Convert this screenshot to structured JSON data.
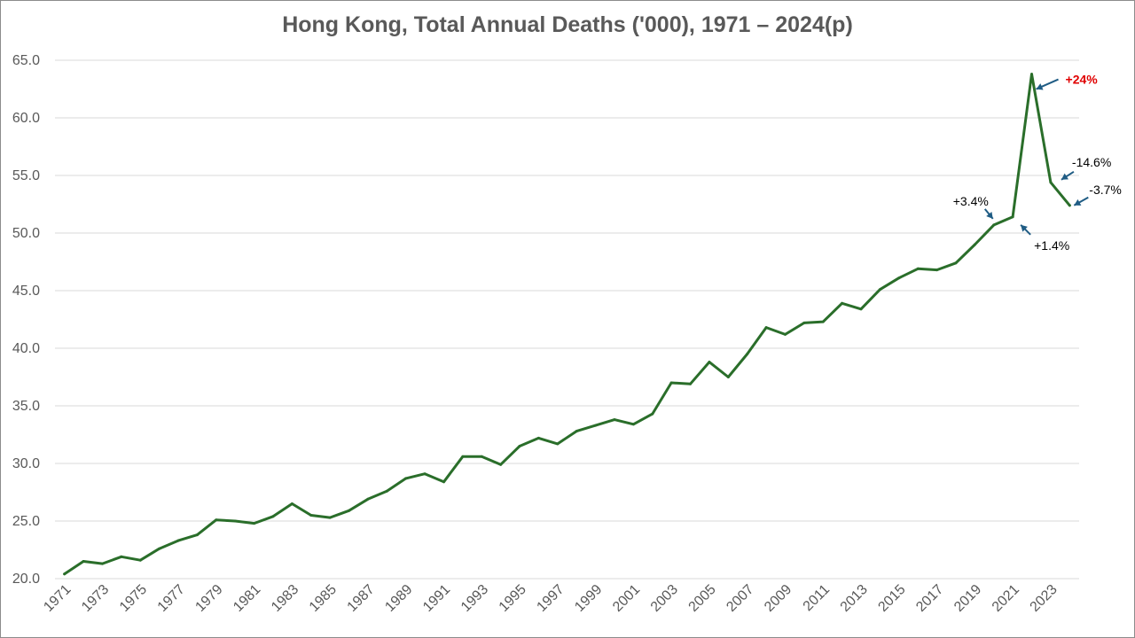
{
  "chart_data": {
    "type": "line",
    "title": "Hong Kong, Total Annual Deaths ('000), 1971 – 2024(p)",
    "xlabel": "",
    "ylabel": "",
    "ylim": [
      20,
      65
    ],
    "y_ticks": [
      "20.0",
      "25.0",
      "30.0",
      "35.0",
      "40.0",
      "45.0",
      "50.0",
      "55.0",
      "60.0",
      "65.0"
    ],
    "x_tick_labels": [
      "1971",
      "1973",
      "1975",
      "1977",
      "1979",
      "1981",
      "1983",
      "1985",
      "1987",
      "1989",
      "1991",
      "1993",
      "1995",
      "1997",
      "1999",
      "2001",
      "2003",
      "2005",
      "2007",
      "2009",
      "2011",
      "2013",
      "2015",
      "2017",
      "2019",
      "2021",
      "2023"
    ],
    "grid": "horizontal",
    "legend": "none",
    "line_color": "#2a6e2a",
    "series": [
      {
        "x": [
          1971,
          1972,
          1973,
          1974,
          1975,
          1976,
          1977,
          1978,
          1979,
          1980,
          1981,
          1982,
          1983,
          1984,
          1985,
          1986,
          1987,
          1988,
          1989,
          1990,
          1991,
          1992,
          1993,
          1994,
          1995,
          1996,
          1997,
          1998,
          1999,
          2000,
          2001,
          2002,
          2003,
          2004,
          2005,
          2006,
          2007,
          2008,
          2009,
          2010,
          2011,
          2012,
          2013,
          2014,
          2015,
          2016,
          2017,
          2018,
          2019,
          2020,
          2021,
          2022,
          2023,
          2024
        ],
        "values": [
          20.4,
          21.5,
          21.3,
          21.9,
          21.6,
          22.6,
          23.3,
          23.8,
          25.1,
          25.0,
          24.8,
          25.4,
          26.5,
          25.5,
          25.3,
          25.9,
          26.9,
          27.6,
          28.7,
          29.1,
          28.4,
          30.6,
          30.6,
          29.9,
          31.5,
          32.2,
          31.7,
          32.8,
          33.3,
          33.8,
          33.4,
          34.3,
          37.0,
          36.9,
          38.8,
          37.5,
          39.5,
          41.8,
          41.2,
          42.2,
          42.3,
          43.9,
          43.4,
          45.1,
          46.1,
          46.9,
          46.8,
          47.4,
          49.0,
          50.7,
          51.4,
          63.8,
          54.4,
          52.4
        ]
      }
    ],
    "annotations": [
      {
        "text": "+3.4%",
        "year": 2020,
        "color": "#000000"
      },
      {
        "text": "+1.4%",
        "year": 2021,
        "color": "#000000"
      },
      {
        "text": "+24%",
        "year": 2022,
        "color": "#e00000"
      },
      {
        "text": "-14.6%",
        "year": 2023,
        "color": "#000000"
      },
      {
        "text": "-3.7%",
        "year": 2024,
        "color": "#000000"
      }
    ]
  }
}
